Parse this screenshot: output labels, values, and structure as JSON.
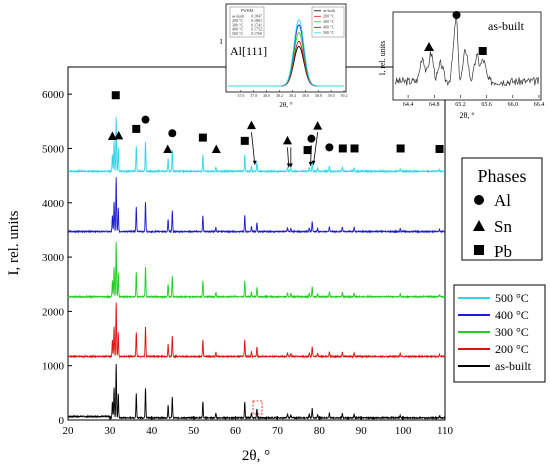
{
  "chart_data": [
    {
      "id": "main",
      "type": "line",
      "xlabel": "2θ, °",
      "ylabel": "I, rel. units",
      "xlim": [
        20,
        110
      ],
      "ylim": [
        0,
        6500
      ],
      "xticks": [
        20,
        30,
        40,
        50,
        60,
        70,
        80,
        90,
        100,
        110
      ],
      "yticks": [
        0,
        1000,
        2000,
        3000,
        4000,
        5000,
        6000
      ],
      "legend": {
        "position": "right",
        "entries": [
          {
            "name": "500 °C",
            "color": "#2fd6e8"
          },
          {
            "name": "400 °C",
            "color": "#1a1ad0"
          },
          {
            "name": "300 °C",
            "color": "#22cc22"
          },
          {
            "name": "200 °C",
            "color": "#e01010"
          },
          {
            "name": "as-built",
            "color": "#000000"
          }
        ]
      },
      "series": [
        {
          "name": "as-built",
          "color": "#000000",
          "baseline": 40
        },
        {
          "name": "200 °C",
          "color": "#e01010",
          "baseline": 1170
        },
        {
          "name": "300 °C",
          "color": "#22cc22",
          "baseline": 2270
        },
        {
          "name": "400 °C",
          "color": "#1a1ad0",
          "baseline": 3470
        },
        {
          "name": "500 °C",
          "color": "#2fd6e8",
          "baseline": 4580
        }
      ],
      "peaks": [
        {
          "x": 30.6,
          "h": 300
        },
        {
          "x": 31.0,
          "h": 550
        },
        {
          "x": 31.5,
          "h": 1000
        },
        {
          "x": 32.0,
          "h": 450
        },
        {
          "x": 36.3,
          "h": 450
        },
        {
          "x": 38.5,
          "h": 550
        },
        {
          "x": 43.9,
          "h": 230
        },
        {
          "x": 44.9,
          "h": 380
        },
        {
          "x": 52.2,
          "h": 300
        },
        {
          "x": 55.3,
          "h": 80
        },
        {
          "x": 62.2,
          "h": 300
        },
        {
          "x": 63.8,
          "h": 90
        },
        {
          "x": 65.1,
          "h": 170
        },
        {
          "x": 72.4,
          "h": 70
        },
        {
          "x": 73.2,
          "h": 60
        },
        {
          "x": 77.6,
          "h": 70
        },
        {
          "x": 78.3,
          "h": 180
        },
        {
          "x": 79.6,
          "h": 60
        },
        {
          "x": 82.4,
          "h": 90
        },
        {
          "x": 85.5,
          "h": 80
        },
        {
          "x": 88.3,
          "h": 70
        },
        {
          "x": 99.3,
          "h": 50
        },
        {
          "x": 108.7,
          "h": 40
        }
      ],
      "phase_markers": [
        {
          "phase": "Sn",
          "x": 30.6,
          "y": 5230
        },
        {
          "phase": "Pb",
          "x": 31.4,
          "y": 5980
        },
        {
          "phase": "Sn",
          "x": 32.1,
          "y": 5240
        },
        {
          "phase": "Pb",
          "x": 36.3,
          "y": 5360
        },
        {
          "phase": "Al",
          "x": 38.5,
          "y": 5530
        },
        {
          "phase": "Sn",
          "x": 43.8,
          "y": 4990
        },
        {
          "phase": "Al",
          "x": 44.9,
          "y": 5280
        },
        {
          "phase": "Pb",
          "x": 52.2,
          "y": 5200
        },
        {
          "phase": "Sn",
          "x": 55.4,
          "y": 4990
        },
        {
          "phase": "Pb",
          "x": 62.2,
          "y": 5140
        },
        {
          "phase": "Sn",
          "x": 63.8,
          "y": 5430
        },
        {
          "phase": "Sn",
          "x": 72.4,
          "y": 5150
        },
        {
          "phase": "Al",
          "x": 78.1,
          "y": 5180
        },
        {
          "phase": "Pb",
          "x": 77.2,
          "y": 4970
        },
        {
          "phase": "Sn",
          "x": 79.6,
          "y": 5420
        },
        {
          "phase": "Al",
          "x": 82.4,
          "y": 5020
        },
        {
          "phase": "Pb",
          "x": 85.6,
          "y": 5000
        },
        {
          "phase": "Pb",
          "x": 88.4,
          "y": 5000
        },
        {
          "phase": "Pb",
          "x": 99.4,
          "y": 5000
        },
        {
          "phase": "Pb",
          "x": 108.7,
          "y": 4990
        }
      ],
      "phases_legend": {
        "title": "Phases",
        "entries": [
          {
            "phase": "Al",
            "marker": "circle"
          },
          {
            "phase": "Sn",
            "marker": "triangle"
          },
          {
            "phase": "Pb",
            "marker": "square"
          }
        ]
      }
    },
    {
      "id": "inset-al111",
      "type": "line",
      "title": "Al[111]",
      "xlabel": "2θ, °",
      "ylabel": "I",
      "xlim": [
        37.4,
        39.2
      ],
      "xticks": [
        "37.6",
        "37.8",
        "38.0",
        "38.2",
        "38.4",
        "38.6",
        "38.8",
        "39.0",
        "39.2"
      ],
      "table_header": "FWHM",
      "table_rows": [
        [
          "as-built",
          "0.1847"
        ],
        [
          "200 °C",
          "0.1801"
        ],
        [
          "300 °C",
          "0.1741"
        ],
        [
          "400 °C",
          "0.1752"
        ],
        [
          "500 °C",
          "0.1769"
        ]
      ],
      "legend_entries": [
        {
          "name": "as-built",
          "color": "#000000"
        },
        {
          "name": "200 °C",
          "color": "#e01010"
        },
        {
          "name": "300 °C",
          "color": "#22cc22"
        },
        {
          "name": "400 °C",
          "color": "#1a1ad0"
        },
        {
          "name": "500 °C",
          "color": "#2fd6e8"
        }
      ],
      "peak_center": 38.5,
      "series": [
        {
          "name": "as-built",
          "color": "#000000",
          "height": 0.55
        },
        {
          "name": "200 °C",
          "color": "#e01010",
          "height": 0.62
        },
        {
          "name": "300 °C",
          "color": "#22cc22",
          "height": 0.74
        },
        {
          "name": "400 °C",
          "color": "#1a1ad0",
          "height": 0.85
        },
        {
          "name": "500 °C",
          "color": "#2fd6e8",
          "height": 0.92
        }
      ]
    },
    {
      "id": "inset-asbuilt",
      "type": "line",
      "title": "as-built",
      "xlabel": "2θ, °",
      "ylabel": "I, rel. units",
      "xlim": [
        64.2,
        66.4
      ],
      "xticks": [
        "64.4",
        "64.8",
        "65.2",
        "65.6",
        "66.0",
        "66.4"
      ],
      "phase_markers": [
        {
          "phase": "Sn",
          "x": 64.72
        },
        {
          "phase": "Al",
          "x": 65.14
        },
        {
          "phase": "Pb",
          "x": 65.54
        }
      ]
    }
  ]
}
